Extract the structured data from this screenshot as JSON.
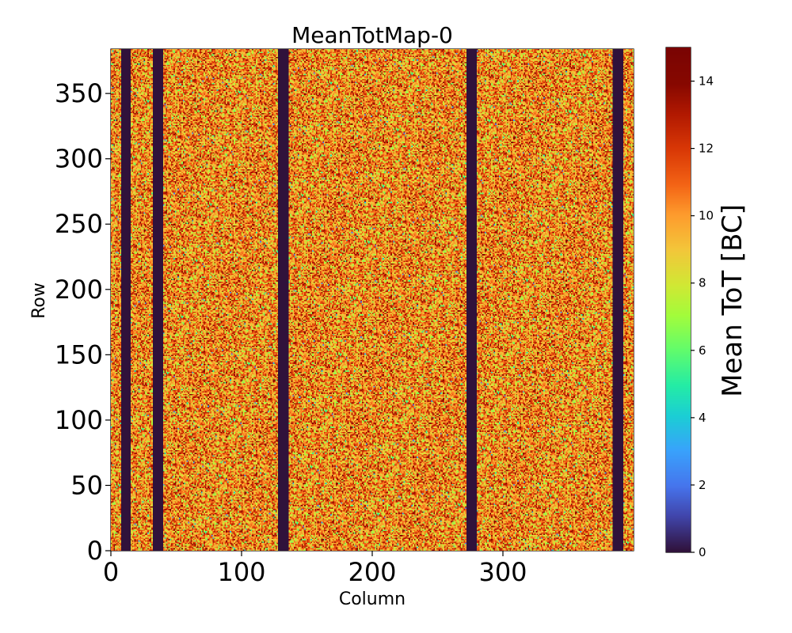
{
  "chart_data": {
    "type": "heatmap",
    "title": "MeanTotMap-0",
    "xlabel": "Column",
    "ylabel": "Row",
    "xlim": [
      0,
      400
    ],
    "ylim": [
      0,
      384
    ],
    "xticks": [
      0,
      100,
      200,
      300
    ],
    "yticks": [
      0,
      50,
      100,
      150,
      200,
      250,
      300,
      350
    ],
    "colorbar": {
      "label": "Mean ToT [BC]",
      "range": [
        0,
        15
      ],
      "ticks": [
        0,
        2,
        4,
        6,
        8,
        10,
        12,
        14
      ],
      "colormap": "turbo"
    },
    "dead_column_bands": [
      [
        8,
        15
      ],
      [
        32,
        40
      ],
      [
        128,
        136
      ],
      [
        272,
        280
      ],
      [
        384,
        392
      ]
    ],
    "typical_value": 10.5,
    "value_spread": 2.0
  }
}
